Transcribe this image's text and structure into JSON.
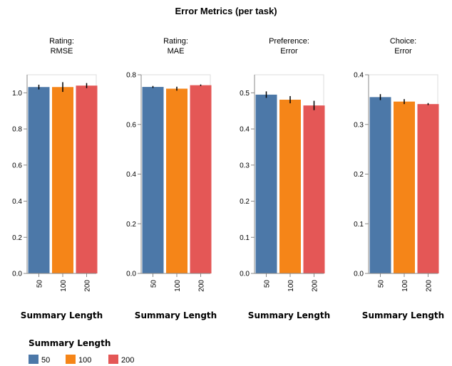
{
  "chart_data": {
    "title": "Error Metrics (per task)",
    "type": "bar",
    "categories": [
      "50",
      "100",
      "200"
    ],
    "colors": {
      "50": "#4c78a8",
      "100": "#f58518",
      "200": "#e45756"
    },
    "xlabel": "Summary Length",
    "legend": {
      "title": "Summary Length",
      "position": "bottom-left",
      "entries": [
        "50",
        "100",
        "200"
      ]
    },
    "panels": [
      {
        "title_line1": "Rating:",
        "title_line2": "RMSE",
        "ylim": [
          0,
          1.1
        ],
        "ticks": [
          "0.0",
          "0.2",
          "0.4",
          "0.6",
          "0.8",
          "1.0"
        ],
        "tick_values": [
          0,
          0.2,
          0.4,
          0.6,
          0.8,
          1.0
        ],
        "values": [
          1.032,
          1.032,
          1.04
        ],
        "err_low": [
          1.019,
          1.005,
          1.026
        ],
        "err_high": [
          1.045,
          1.059,
          1.054
        ]
      },
      {
        "title_line1": "Rating:",
        "title_line2": "MAE",
        "ylim": [
          0,
          0.8
        ],
        "ticks": [
          "0.0",
          "0.2",
          "0.4",
          "0.6",
          "0.8"
        ],
        "tick_values": [
          0,
          0.2,
          0.4,
          0.6,
          0.8
        ],
        "values": [
          0.751,
          0.744,
          0.758
        ],
        "err_low": [
          0.747,
          0.736,
          0.755
        ],
        "err_high": [
          0.755,
          0.752,
          0.761
        ]
      },
      {
        "title_line1": "Preference:",
        "title_line2": "Error",
        "ylim": [
          0,
          0.55
        ],
        "ticks": [
          "0.0",
          "0.1",
          "0.2",
          "0.3",
          "0.4",
          "0.5"
        ],
        "tick_values": [
          0,
          0.1,
          0.2,
          0.3,
          0.4,
          0.5
        ],
        "values": [
          0.495,
          0.481,
          0.465
        ],
        "err_low": [
          0.486,
          0.471,
          0.452
        ],
        "err_high": [
          0.504,
          0.491,
          0.478
        ]
      },
      {
        "title_line1": "Choice:",
        "title_line2": "Error",
        "ylim": [
          0,
          0.4
        ],
        "ticks": [
          "0.0",
          "0.1",
          "0.2",
          "0.3",
          "0.4"
        ],
        "tick_values": [
          0,
          0.1,
          0.2,
          0.3,
          0.4
        ],
        "values": [
          0.355,
          0.346,
          0.341
        ],
        "err_low": [
          0.349,
          0.341,
          0.339
        ],
        "err_high": [
          0.361,
          0.351,
          0.343
        ]
      }
    ]
  }
}
